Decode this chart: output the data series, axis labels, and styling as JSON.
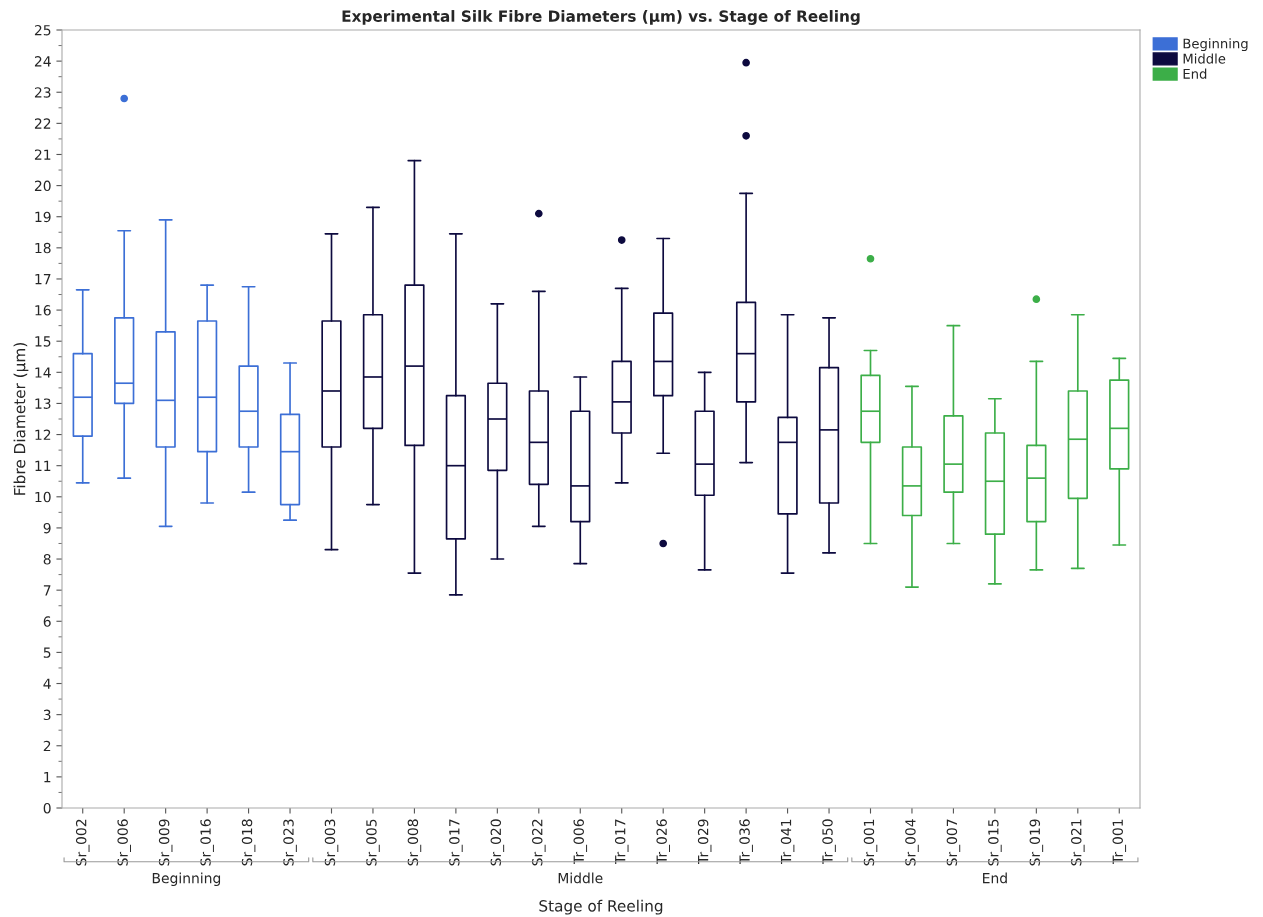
{
  "chart_data": {
    "type": "box",
    "title": "Experimental Silk Fibre Diameters (µm) vs. Stage of Reeling",
    "xlabel": "Stage of Reeling",
    "ylabel": "Fibre Diameter (µm)",
    "categories": [
      "Sr_002",
      "Sr_006",
      "Sr_009",
      "Sr_016",
      "Sr_018",
      "Sr_023",
      "Sr_003",
      "Sr_005",
      "Sr_008",
      "Sr_017",
      "Sr_020",
      "Sr_022",
      "Tr_006",
      "Tr_017",
      "Tr_026",
      "Tr_029",
      "Tr_036",
      "Tr_041",
      "Tr_050",
      "Sr_001",
      "Sr_004",
      "Sr_007",
      "Sr_015",
      "Sr_019",
      "Sr_021",
      "Tr_001"
    ],
    "ylim": [
      0,
      25
    ],
    "yticks": [
      0,
      1,
      2,
      3,
      4,
      5,
      6,
      7,
      8,
      9,
      10,
      11,
      12,
      13,
      14,
      15,
      16,
      17,
      18,
      19,
      20,
      21,
      22,
      23,
      24,
      25
    ],
    "grid": false,
    "legend": "top right",
    "series": [
      {
        "name": "Beginning",
        "color": "#3c6fd6",
        "boxes": [
          {
            "low": 10.45,
            "q1": 11.95,
            "median": 13.2,
            "q3": 14.6,
            "high": 16.65
          },
          {
            "low": 10.6,
            "q1": 13.0,
            "median": 13.65,
            "q3": 15.75,
            "high": 18.55,
            "outliers": [
              22.8
            ]
          },
          {
            "low": 9.05,
            "q1": 11.6,
            "median": 13.1,
            "q3": 15.3,
            "high": 18.9
          },
          {
            "low": 9.8,
            "q1": 11.45,
            "median": 13.2,
            "q3": 15.65,
            "high": 16.8
          },
          {
            "low": 10.15,
            "q1": 11.6,
            "median": 12.75,
            "q3": 14.2,
            "high": 16.75
          },
          {
            "low": 9.25,
            "q1": 9.75,
            "median": 11.45,
            "q3": 12.65,
            "high": 14.3
          },
          null,
          null,
          null,
          null,
          null,
          null,
          null,
          null,
          null,
          null,
          null,
          null,
          null,
          null,
          null,
          null,
          null,
          null,
          null,
          null
        ]
      },
      {
        "name": "Middle",
        "color": "#0d0a3f",
        "boxes": [
          null,
          null,
          null,
          null,
          null,
          null,
          {
            "low": 8.3,
            "q1": 11.6,
            "median": 13.4,
            "q3": 15.65,
            "high": 18.45
          },
          {
            "low": 9.75,
            "q1": 12.2,
            "median": 13.85,
            "q3": 15.85,
            "high": 19.3
          },
          {
            "low": 7.55,
            "q1": 11.65,
            "median": 14.2,
            "q3": 16.8,
            "high": 20.8
          },
          {
            "low": 6.85,
            "q1": 8.65,
            "median": 11.0,
            "q3": 13.25,
            "high": 18.45
          },
          {
            "low": 8.0,
            "q1": 10.85,
            "median": 12.5,
            "q3": 13.65,
            "high": 16.2
          },
          {
            "low": 9.05,
            "q1": 10.4,
            "median": 11.75,
            "q3": 13.4,
            "high": 16.6,
            "outliers": [
              19.1
            ]
          },
          {
            "low": 7.85,
            "q1": 9.2,
            "median": 10.35,
            "q3": 12.75,
            "high": 13.85
          },
          {
            "low": 10.45,
            "q1": 12.05,
            "median": 13.05,
            "q3": 14.35,
            "high": 16.7,
            "outliers": [
              18.25
            ]
          },
          {
            "low": 11.4,
            "q1": 13.25,
            "median": 14.35,
            "q3": 15.9,
            "high": 18.3,
            "outliers": [
              8.5
            ]
          },
          {
            "low": 7.65,
            "q1": 10.05,
            "median": 11.05,
            "q3": 12.75,
            "high": 14.0
          },
          {
            "low": 11.1,
            "q1": 13.05,
            "median": 14.6,
            "q3": 16.25,
            "high": 19.75,
            "outliers": [
              21.6,
              23.95
            ]
          },
          {
            "low": 7.55,
            "q1": 9.45,
            "median": 11.75,
            "q3": 12.55,
            "high": 15.85
          },
          {
            "low": 8.2,
            "q1": 9.8,
            "median": 12.15,
            "q3": 14.15,
            "high": 15.75
          },
          null,
          null,
          null,
          null,
          null,
          null,
          null
        ]
      },
      {
        "name": "End",
        "color": "#3cae48",
        "boxes": [
          null,
          null,
          null,
          null,
          null,
          null,
          null,
          null,
          null,
          null,
          null,
          null,
          null,
          null,
          null,
          null,
          null,
          null,
          null,
          {
            "low": 8.5,
            "q1": 11.75,
            "median": 12.75,
            "q3": 13.9,
            "high": 14.7,
            "outliers": [
              17.65
            ]
          },
          {
            "low": 7.1,
            "q1": 9.4,
            "median": 10.35,
            "q3": 11.6,
            "high": 13.55
          },
          {
            "low": 8.5,
            "q1": 10.15,
            "median": 11.05,
            "q3": 12.6,
            "high": 15.5
          },
          {
            "low": 7.2,
            "q1": 8.8,
            "median": 10.5,
            "q3": 12.05,
            "high": 13.15
          },
          {
            "low": 7.65,
            "q1": 9.2,
            "median": 10.6,
            "q3": 11.65,
            "high": 14.35,
            "outliers": [
              16.35
            ]
          },
          {
            "low": 7.7,
            "q1": 9.95,
            "median": 11.85,
            "q3": 13.4,
            "high": 15.85
          },
          {
            "low": 8.45,
            "q1": 10.9,
            "median": 12.2,
            "q3": 13.75,
            "high": 14.45
          }
        ]
      }
    ]
  }
}
